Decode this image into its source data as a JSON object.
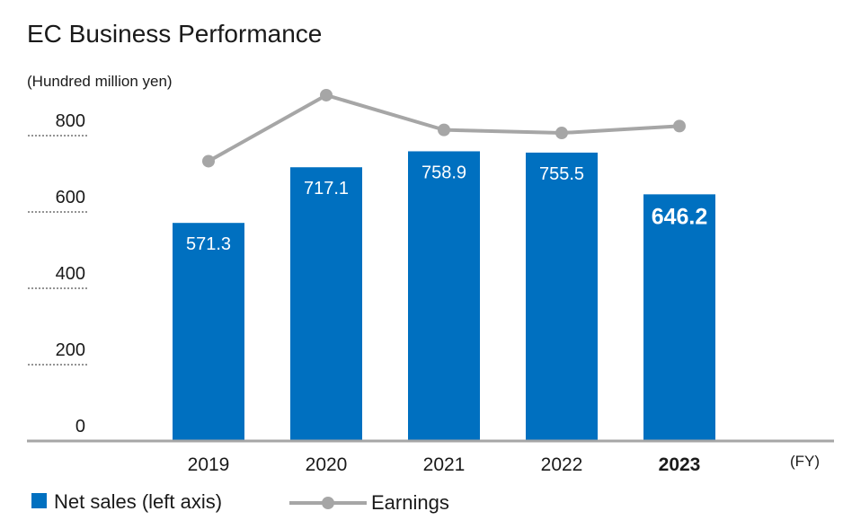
{
  "chart_data": {
    "type": "bar",
    "title": "EC Business Performance",
    "ylabel": "(Hundred million yen)",
    "xlabel": "(FY)",
    "categories": [
      "2019",
      "2020",
      "2021",
      "2022",
      "2023"
    ],
    "highlight_category": "2023",
    "ylim": [
      0,
      800
    ],
    "yticks": [
      0,
      200,
      400,
      600,
      800
    ],
    "series": [
      {
        "name": "Net sales (left axis)",
        "type": "bar",
        "axis": "left",
        "color": "#0070c0",
        "values": [
          571.3,
          717.1,
          758.9,
          755.5,
          646.2
        ],
        "labels": [
          "571.3",
          "717.1",
          "758.9",
          "755.5",
          "646.2"
        ]
      },
      {
        "name": "Earnings",
        "type": "line",
        "axis": "none",
        "color": "#a6a6a6",
        "values": [
          733,
          906,
          815,
          807,
          825
        ]
      }
    ],
    "legend": [
      {
        "label": "Net sales (left axis)",
        "marker": "square",
        "color": "#0070c0"
      },
      {
        "label": "Earnings",
        "marker": "line-dot",
        "color": "#a6a6a6"
      }
    ],
    "legend_position": "bottom-left",
    "grid": false
  }
}
